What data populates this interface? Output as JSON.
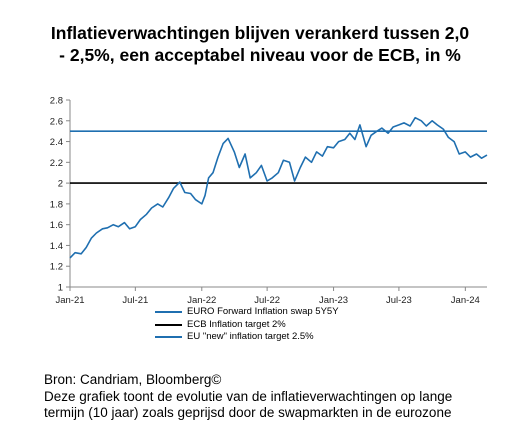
{
  "title": {
    "line1": "Inflatieverwachtingen blijven verankerd tussen 2,0",
    "line2": "- 2,5%, een acceptabel niveau voor de ECB, in %"
  },
  "chart_data": {
    "type": "line",
    "title": "Inflatieverwachtingen blijven verankerd tussen 2,0 - 2,5%, een acceptabel niveau voor de ECB, in %",
    "xlabel": "",
    "ylabel": "",
    "ylim": [
      1,
      2.8
    ],
    "yticks": [
      "1",
      "1.2",
      "1.4",
      "1.6",
      "1.8",
      "2",
      "2.2",
      "2.4",
      "2.6",
      "2.8"
    ],
    "xticks": [
      "Jan-21",
      "Jul-21",
      "Jan-22",
      "Jul-22",
      "Jan-23",
      "Jul-23",
      "Jan-24"
    ],
    "xlim": [
      "2021-01",
      "2024-03"
    ],
    "grid": false,
    "legend_position": "bottom",
    "series": [
      {
        "name": "EURO Forward Inflation swap 5Y5Y",
        "color": "#1f6fb0",
        "x": [
          "2021-01",
          "2021-01-15",
          "2021-02",
          "2021-02-15",
          "2021-03",
          "2021-03-15",
          "2021-04",
          "2021-04-15",
          "2021-05",
          "2021-05-15",
          "2021-06",
          "2021-06-15",
          "2021-07",
          "2021-07-15",
          "2021-08",
          "2021-08-15",
          "2021-09",
          "2021-09-15",
          "2021-10",
          "2021-10-15",
          "2021-11",
          "2021-11-15",
          "2021-12",
          "2021-12-15",
          "2022-01",
          "2022-01-10",
          "2022-01-20",
          "2022-02",
          "2022-02-15",
          "2022-03",
          "2022-03-15",
          "2022-04",
          "2022-04-15",
          "2022-05",
          "2022-05-15",
          "2022-06",
          "2022-06-15",
          "2022-07",
          "2022-07-15",
          "2022-08",
          "2022-08-15",
          "2022-09",
          "2022-09-15",
          "2022-10",
          "2022-10-15",
          "2022-11",
          "2022-11-15",
          "2022-12",
          "2022-12-15",
          "2023-01",
          "2023-01-15",
          "2023-02",
          "2023-02-15",
          "2023-03",
          "2023-03-15",
          "2023-04",
          "2023-04-15",
          "2023-05",
          "2023-05-15",
          "2023-06",
          "2023-06-15",
          "2023-07",
          "2023-07-15",
          "2023-08",
          "2023-08-15",
          "2023-09",
          "2023-09-15",
          "2023-10",
          "2023-10-15",
          "2023-11",
          "2023-11-15",
          "2023-12",
          "2023-12-15",
          "2024-01",
          "2024-01-15",
          "2024-02",
          "2024-02-15",
          "2024-03"
        ],
        "values": [
          1.28,
          1.33,
          1.32,
          1.38,
          1.47,
          1.52,
          1.56,
          1.57,
          1.6,
          1.58,
          1.62,
          1.56,
          1.58,
          1.65,
          1.7,
          1.76,
          1.8,
          1.77,
          1.86,
          1.95,
          2.01,
          1.91,
          1.9,
          1.84,
          1.8,
          1.88,
          2.05,
          2.1,
          2.25,
          2.38,
          2.43,
          2.3,
          2.15,
          2.28,
          2.05,
          2.1,
          2.17,
          2.02,
          2.05,
          2.1,
          2.22,
          2.2,
          2.02,
          2.15,
          2.25,
          2.2,
          2.3,
          2.26,
          2.35,
          2.34,
          2.4,
          2.42,
          2.48,
          2.42,
          2.56,
          2.35,
          2.46,
          2.5,
          2.53,
          2.48,
          2.54,
          2.56,
          2.58,
          2.55,
          2.63,
          2.6,
          2.55,
          2.6,
          2.56,
          2.52,
          2.44,
          2.4,
          2.28,
          2.3,
          2.25,
          2.28,
          2.24,
          2.27
        ]
      },
      {
        "name": "ECB Inflation target 2%",
        "color": "#000000",
        "x": [
          "2021-01",
          "2024-03"
        ],
        "values": [
          2,
          2
        ]
      },
      {
        "name": "EU \"new\" inflation target 2.5%",
        "color": "#1f6fb0",
        "x": [
          "2021-01",
          "2024-03"
        ],
        "values": [
          2.5,
          2.5
        ]
      }
    ]
  },
  "footer": {
    "source": "Bron: Candriam, Bloomberg©",
    "note_line1": "Deze grafiek toont de evolutie van de inflatieverwachtingen op lange",
    "note_line2": "termijn (10 jaar) zoals geprijsd door de swapmarkten in de eurozone"
  }
}
